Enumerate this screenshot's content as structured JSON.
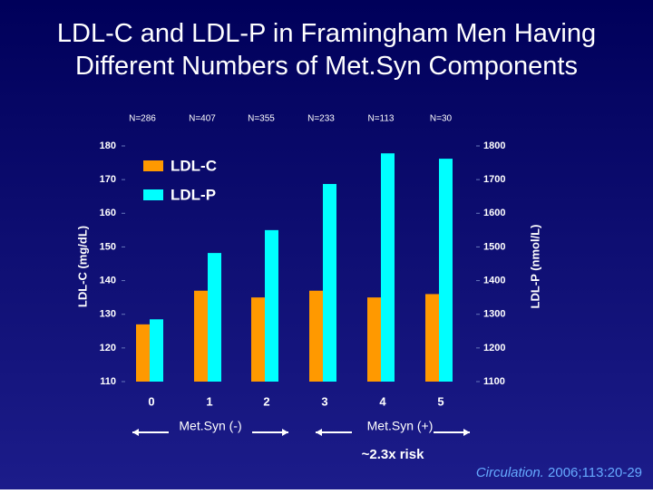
{
  "chart_data": {
    "type": "bar",
    "title": "LDL-C and LDL-P in Framingham Men Having Different Numbers of Met.Syn Components",
    "categories": [
      "0",
      "1",
      "2",
      "3",
      "4",
      "5"
    ],
    "n_labels": [
      "N=286",
      "N=407",
      "N=355",
      "N=233",
      "N=113",
      "N=30"
    ],
    "series": [
      {
        "name": "LDL-C",
        "color": "#ff9900",
        "values": [
          127,
          137,
          135,
          137,
          135,
          136
        ]
      },
      {
        "name": "LDL-P",
        "color": "#00ffff",
        "axis": "y2",
        "values": [
          1285,
          1482,
          1550,
          1687,
          1778,
          1762
        ]
      }
    ],
    "ylabel": "LDL-C (mg/dL)",
    "y2label": "LDL-P (nmol/L)",
    "ylim": [
      110,
      180
    ],
    "yticks": [
      110,
      120,
      130,
      140,
      150,
      160,
      170,
      180
    ],
    "y2lim": [
      1100,
      1800
    ],
    "y2ticks": [
      1100,
      1200,
      1300,
      1400,
      1500,
      1600,
      1700,
      1800
    ],
    "legend": "upper left",
    "annotations": [
      "Met.Syn (-)",
      "Met.Syn (+)",
      "~2.3x risk"
    ],
    "citation": {
      "journal": "Circulation.",
      "reference": "2006;113:20-29"
    }
  }
}
